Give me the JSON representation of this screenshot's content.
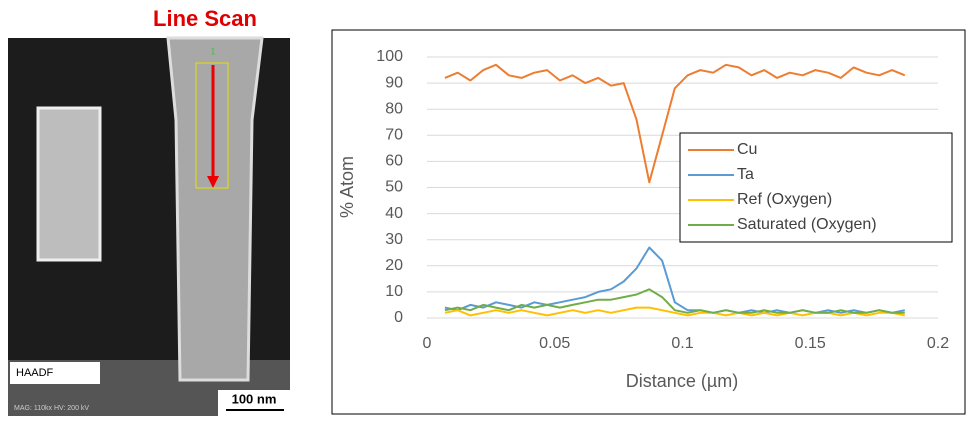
{
  "image": {
    "title": "Line Scan",
    "marker": "1",
    "detector": "HAADF",
    "info": "MAG: 110kx   HV: 200 kV",
    "scale_bar": "100 nm"
  },
  "chart_data": {
    "type": "line",
    "xlabel": "Distance (µm)",
    "ylabel": "% Atom",
    "x": [
      0.007,
      0.012,
      0.017,
      0.022,
      0.027,
      0.032,
      0.037,
      0.042,
      0.047,
      0.052,
      0.057,
      0.062,
      0.067,
      0.072,
      0.077,
      0.082,
      0.087,
      0.092,
      0.097,
      0.102,
      0.107,
      0.112,
      0.117,
      0.122,
      0.127,
      0.132,
      0.137,
      0.142,
      0.147,
      0.152,
      0.157,
      0.162,
      0.167,
      0.172,
      0.177,
      0.182,
      0.187
    ],
    "series": [
      {
        "name": "Cu",
        "color": "#ed7d31",
        "values": [
          92,
          94,
          91,
          95,
          97,
          93,
          92,
          94,
          95,
          91,
          93,
          90,
          92,
          89,
          90,
          76,
          52,
          70,
          88,
          93,
          95,
          94,
          97,
          96,
          93,
          95,
          92,
          94,
          93,
          95,
          94,
          92,
          96,
          94,
          93,
          95,
          93
        ]
      },
      {
        "name": "Ta",
        "color": "#5b9bd5",
        "values": [
          4,
          3,
          5,
          4,
          6,
          5,
          4,
          6,
          5,
          6,
          7,
          8,
          10,
          11,
          14,
          19,
          27,
          22,
          6,
          3,
          3,
          2,
          3,
          2,
          3,
          2,
          3,
          2,
          3,
          2,
          3,
          2,
          3,
          2,
          3,
          2,
          3
        ]
      },
      {
        "name": "Ref (Oxygen)",
        "color": "#ffc000",
        "values": [
          2,
          3,
          1,
          2,
          3,
          2,
          3,
          2,
          1,
          2,
          3,
          2,
          3,
          2,
          3,
          4,
          4,
          3,
          2,
          1,
          2,
          2,
          1,
          2,
          1,
          2,
          1,
          2,
          1,
          2,
          2,
          1,
          2,
          1,
          2,
          2,
          1
        ]
      },
      {
        "name": "Saturated (Oxygen)",
        "color": "#70ad47",
        "values": [
          3,
          4,
          3,
          5,
          4,
          3,
          5,
          4,
          5,
          4,
          5,
          6,
          7,
          7,
          8,
          9,
          11,
          8,
          3,
          2,
          3,
          2,
          3,
          2,
          2,
          3,
          2,
          2,
          3,
          2,
          2,
          3,
          2,
          2,
          3,
          2,
          2
        ]
      }
    ],
    "xlim": [
      0,
      0.2
    ],
    "xticks": [
      0,
      0.05,
      0.1,
      0.15,
      0.2
    ],
    "ylim": [
      0,
      100
    ],
    "yticks": [
      0,
      10,
      20,
      30,
      40,
      50,
      60,
      70,
      80,
      90,
      100
    ],
    "grid": true
  }
}
